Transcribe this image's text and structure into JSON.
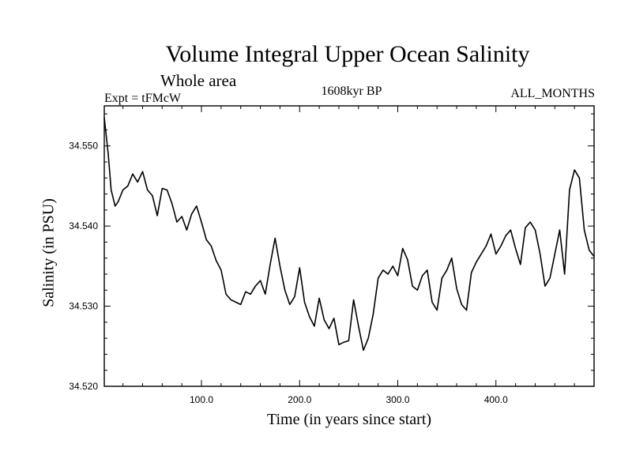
{
  "chart_data": {
    "type": "line",
    "title": "Volume Integral Upper Ocean Salinity",
    "subtitle": "Whole area",
    "left_label": "Expt = tFMcW",
    "center_label": "1608kyr BP",
    "right_label": "ALL_MONTHS",
    "xlabel": "Time (in years since start)",
    "ylabel": "Salinity (in PSU)",
    "xlim": [
      1,
      500
    ],
    "ylim": [
      34.52,
      34.555
    ],
    "xticks": [
      100,
      200,
      300,
      400
    ],
    "xtick_labels": [
      "100.0",
      "200.0",
      "300.0",
      "400.0"
    ],
    "yticks": [
      34.52,
      34.53,
      34.54,
      34.55
    ],
    "ytick_labels": [
      "34.520",
      "34.530",
      "34.540",
      "34.550"
    ],
    "series": [
      {
        "name": "Salinity",
        "color": "#000000",
        "x": [
          1,
          5,
          8,
          12,
          15,
          20,
          25,
          30,
          35,
          40,
          45,
          50,
          55,
          60,
          65,
          70,
          75,
          80,
          85,
          90,
          95,
          100,
          105,
          110,
          115,
          120,
          125,
          130,
          135,
          140,
          145,
          150,
          155,
          160,
          165,
          170,
          175,
          180,
          185,
          190,
          195,
          200,
          205,
          210,
          215,
          220,
          225,
          230,
          235,
          240,
          245,
          250,
          255,
          260,
          265,
          270,
          275,
          280,
          285,
          290,
          295,
          300,
          305,
          310,
          315,
          320,
          325,
          330,
          335,
          340,
          345,
          350,
          355,
          360,
          365,
          370,
          375,
          380,
          385,
          390,
          395,
          400,
          405,
          410,
          415,
          420,
          425,
          430,
          435,
          440,
          445,
          450,
          455,
          460,
          465,
          470,
          475,
          480,
          485,
          490,
          495,
          500
        ],
        "values": [
          34.5535,
          34.549,
          34.5445,
          34.5425,
          34.543,
          34.5445,
          34.545,
          34.5465,
          34.5455,
          34.5468,
          34.5445,
          34.5438,
          34.5413,
          34.5447,
          34.5445,
          34.5428,
          34.5405,
          34.5412,
          34.5395,
          34.5415,
          34.5425,
          34.5405,
          34.5383,
          34.5375,
          34.5357,
          34.5345,
          34.5315,
          34.5308,
          34.5305,
          34.5302,
          34.5318,
          34.5315,
          34.5325,
          34.5332,
          34.5315,
          34.5352,
          34.5385,
          34.535,
          34.532,
          34.5302,
          34.5312,
          34.5348,
          34.5305,
          34.5287,
          34.5275,
          34.531,
          34.5283,
          34.5272,
          34.5285,
          34.5252,
          34.5255,
          34.5257,
          34.5308,
          34.5275,
          34.5245,
          34.526,
          34.529,
          34.5335,
          34.5345,
          34.534,
          34.535,
          34.5338,
          34.5372,
          34.5358,
          34.5325,
          34.532,
          34.5338,
          34.5345,
          34.5305,
          34.5295,
          34.5335,
          34.5345,
          34.536,
          34.5322,
          34.5302,
          34.5295,
          34.5342,
          34.5355,
          34.5365,
          34.5375,
          34.539,
          34.5365,
          34.5375,
          34.5388,
          34.5395,
          34.5372,
          34.5352,
          34.5398,
          34.5405,
          34.5395,
          34.5365,
          34.5325,
          34.5335,
          34.5365,
          34.5395,
          34.534,
          34.5445,
          34.547,
          34.546,
          34.5395,
          34.537,
          34.5362
        ]
      }
    ]
  }
}
